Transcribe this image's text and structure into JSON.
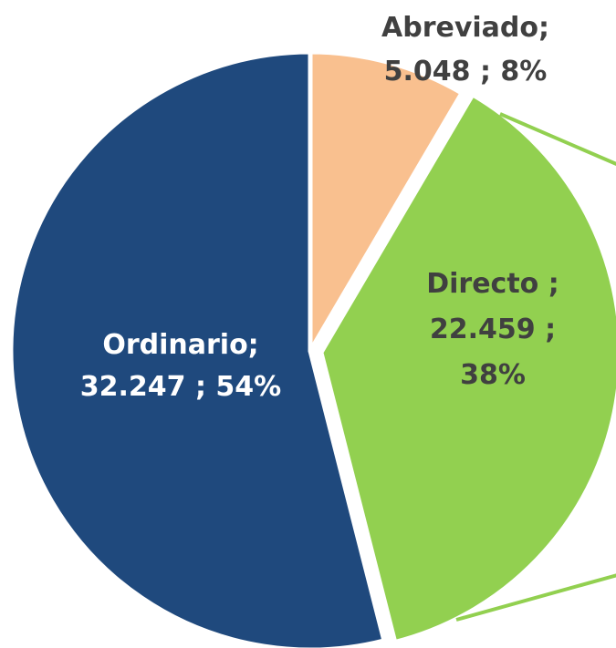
{
  "chart_data": {
    "type": "pie",
    "categories": [
      "Abreviado;",
      "Directo ;",
      "Ordinario;"
    ],
    "values": [
      5048,
      22459,
      32247
    ],
    "value_labels": [
      "5.048 ; 8%",
      "22.459 ; 38%",
      "32.247 ; 54%"
    ],
    "colors": [
      "#f9c08f",
      "#92d050",
      "#1f497d"
    ]
  }
}
